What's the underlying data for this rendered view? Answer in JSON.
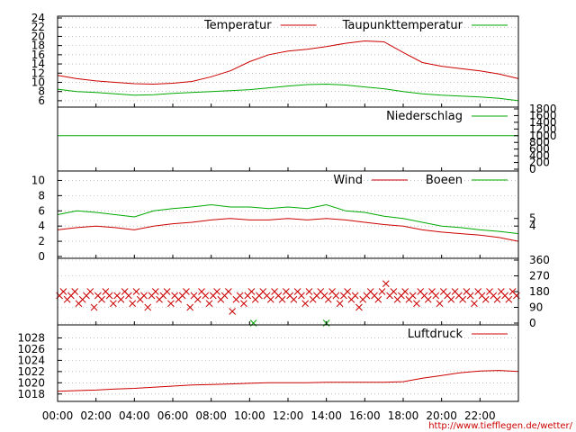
{
  "footer": {
    "url": "http://www.tiefflegen.de/wetter/",
    "color": "#cc0000"
  },
  "colors": {
    "red": "#cc0000",
    "green": "#00aa00",
    "grid": "#999999",
    "frame": "#000000"
  },
  "chart_data": [
    {
      "type": "line",
      "panel": "temperature",
      "ylim": [
        5,
        24
      ],
      "yticks": [
        6,
        8,
        10,
        12,
        14,
        16,
        18,
        20,
        22,
        24
      ],
      "grid": true,
      "legend_placement": "top-right",
      "series": [
        {
          "name": "Temperatur",
          "color": "#cc0000",
          "x": [
            0,
            1,
            2,
            3,
            4,
            5,
            6,
            7,
            8,
            9,
            10,
            11,
            12,
            13,
            14,
            15,
            16,
            17,
            18,
            19,
            20,
            21,
            22,
            23,
            24
          ],
          "values": [
            11.5,
            10.8,
            10.3,
            10.0,
            9.7,
            9.6,
            9.8,
            10.2,
            11.2,
            12.5,
            14.5,
            16.0,
            16.8,
            17.2,
            17.8,
            18.5,
            19.0,
            18.8,
            16.5,
            14.3,
            13.5,
            13.0,
            12.5,
            11.8,
            10.8
          ]
        },
        {
          "name": "Taupunkttemperatur",
          "color": "#00aa00",
          "x": [
            0,
            1,
            2,
            3,
            4,
            5,
            6,
            7,
            8,
            9,
            10,
            11,
            12,
            13,
            14,
            15,
            16,
            17,
            18,
            19,
            20,
            21,
            22,
            23,
            24
          ],
          "values": [
            8.5,
            8.0,
            7.8,
            7.5,
            7.2,
            7.3,
            7.6,
            7.8,
            8.0,
            8.2,
            8.4,
            8.8,
            9.2,
            9.5,
            9.6,
            9.4,
            9.0,
            8.6,
            8.0,
            7.5,
            7.2,
            7.0,
            6.8,
            6.5,
            6.0
          ]
        }
      ]
    },
    {
      "type": "line",
      "panel": "precipitation",
      "ylim": [
        0,
        1800
      ],
      "yticks_right": [
        0,
        200,
        400,
        600,
        800,
        1000,
        1200,
        1400,
        1600,
        1800
      ],
      "grid": false,
      "legend_placement": "top-right",
      "series": [
        {
          "name": "Niederschlag",
          "color": "#00aa00",
          "constant": 1000
        }
      ]
    },
    {
      "type": "line",
      "panel": "wind",
      "ylim": [
        0,
        11
      ],
      "yticks": [
        0,
        2,
        4,
        6,
        8,
        10
      ],
      "yticks_right": [
        4,
        5
      ],
      "grid": true,
      "legend_placement": "top-right",
      "series": [
        {
          "name": "Wind",
          "color": "#cc0000",
          "x": [
            0,
            1,
            2,
            3,
            4,
            5,
            6,
            7,
            8,
            9,
            10,
            11,
            12,
            13,
            14,
            15,
            16,
            17,
            18,
            19,
            20,
            21,
            22,
            23,
            24
          ],
          "values": [
            3.5,
            3.8,
            4.0,
            3.8,
            3.5,
            4.0,
            4.3,
            4.5,
            4.8,
            5.0,
            4.8,
            4.8,
            5.0,
            4.8,
            5.0,
            4.8,
            4.5,
            4.2,
            4.0,
            3.5,
            3.2,
            3.0,
            2.8,
            2.5,
            2.0
          ]
        },
        {
          "name": "Boeen",
          "color": "#00aa00",
          "x": [
            0,
            1,
            2,
            3,
            4,
            5,
            6,
            7,
            8,
            9,
            10,
            11,
            12,
            13,
            14,
            15,
            16,
            17,
            18,
            19,
            20,
            21,
            22,
            23,
            24
          ],
          "values": [
            5.5,
            6.0,
            5.8,
            5.5,
            5.2,
            6.0,
            6.3,
            6.5,
            6.8,
            6.5,
            6.5,
            6.3,
            6.5,
            6.3,
            6.8,
            6.0,
            5.8,
            5.3,
            5.0,
            4.5,
            4.0,
            3.8,
            3.5,
            3.3,
            3.0
          ]
        }
      ]
    },
    {
      "type": "scatter",
      "panel": "wind_direction",
      "ylim": [
        0,
        360
      ],
      "yticks_right": [
        0,
        90,
        180,
        270,
        360
      ],
      "grid": true,
      "marker": "x",
      "series": [
        {
          "color": "#cc0000",
          "x": [
            0.1,
            0.3,
            0.5,
            0.7,
            0.9,
            1.1,
            1.3,
            1.5,
            1.7,
            1.9,
            2.1,
            2.3,
            2.5,
            2.7,
            2.9,
            3.1,
            3.3,
            3.5,
            3.7,
            3.9,
            4.1,
            4.3,
            4.5,
            4.7,
            4.9,
            5.1,
            5.3,
            5.5,
            5.7,
            5.9,
            6.1,
            6.3,
            6.5,
            6.7,
            6.9,
            7.1,
            7.3,
            7.5,
            7.7,
            7.9,
            8.1,
            8.3,
            8.5,
            8.7,
            8.9,
            9.1,
            9.3,
            9.5,
            9.7,
            9.9,
            10.1,
            10.3,
            10.5,
            10.7,
            10.9,
            11.1,
            11.3,
            11.5,
            11.7,
            11.9,
            12.1,
            12.3,
            12.5,
            12.7,
            12.9,
            13.1,
            13.3,
            13.5,
            13.7,
            13.9,
            14.1,
            14.3,
            14.5,
            14.7,
            14.9,
            15.1,
            15.3,
            15.5,
            15.7,
            15.9,
            16.1,
            16.3,
            16.5,
            16.7,
            16.9,
            17.1,
            17.3,
            17.5,
            17.7,
            17.9,
            18.1,
            18.3,
            18.5,
            18.7,
            18.9,
            19.1,
            19.3,
            19.5,
            19.7,
            19.9,
            20.1,
            20.3,
            20.5,
            20.7,
            20.9,
            21.1,
            21.3,
            21.5,
            21.7,
            21.9,
            22.1,
            22.3,
            22.5,
            22.7,
            22.9,
            23.1,
            23.3,
            23.5,
            23.7,
            23.9
          ],
          "values": [
            157,
            180,
            135,
            157,
            180,
            112,
            135,
            157,
            180,
            90,
            157,
            135,
            180,
            157,
            112,
            157,
            135,
            180,
            157,
            112,
            180,
            135,
            157,
            90,
            157,
            180,
            135,
            157,
            180,
            112,
            157,
            135,
            157,
            180,
            90,
            157,
            135,
            180,
            157,
            112,
            157,
            180,
            135,
            157,
            180,
            67,
            135,
            157,
            112,
            157,
            180,
            135,
            157,
            180,
            157,
            135,
            180,
            157,
            135,
            180,
            157,
            135,
            180,
            157,
            112,
            180,
            135,
            157,
            180,
            157,
            135,
            180,
            157,
            112,
            157,
            180,
            135,
            157,
            90,
            135,
            157,
            180,
            157,
            135,
            180,
            225,
            157,
            180,
            135,
            157,
            180,
            135,
            157,
            112,
            180,
            157,
            135,
            180,
            157,
            112,
            180,
            157,
            135,
            180,
            157,
            135,
            180,
            157,
            112,
            180,
            157,
            135,
            180,
            157,
            135,
            180,
            157,
            135,
            180,
            157
          ]
        },
        {
          "color": "#00aa00",
          "x": [
            10.2,
            14.0
          ],
          "values": [
            0,
            0
          ]
        }
      ]
    },
    {
      "type": "line",
      "panel": "pressure",
      "ylim": [
        1017,
        1030
      ],
      "yticks": [
        1018,
        1020,
        1022,
        1024,
        1026,
        1028
      ],
      "grid": true,
      "legend_placement": "top-right",
      "series": [
        {
          "name": "Luftdruck",
          "color": "#cc0000",
          "x": [
            0,
            1,
            2,
            3,
            4,
            5,
            6,
            7,
            8,
            9,
            10,
            11,
            12,
            13,
            14,
            15,
            16,
            17,
            18,
            19,
            20,
            21,
            22,
            23,
            24
          ],
          "values": [
            1018.5,
            1018.6,
            1018.7,
            1018.9,
            1019.0,
            1019.2,
            1019.4,
            1019.6,
            1019.7,
            1019.8,
            1019.9,
            1020.0,
            1020.0,
            1020.0,
            1020.1,
            1020.1,
            1020.1,
            1020.1,
            1020.2,
            1020.8,
            1021.3,
            1021.8,
            1022.1,
            1022.2,
            1022.0
          ]
        }
      ]
    }
  ],
  "x_axis": {
    "xlim": [
      0,
      24
    ],
    "ticks": [
      0,
      2,
      4,
      6,
      8,
      10,
      12,
      14,
      16,
      18,
      20,
      22
    ],
    "tick_labels": [
      "00:00",
      "02:00",
      "04:00",
      "06:00",
      "08:00",
      "10:00",
      "12:00",
      "14:00",
      "16:00",
      "18:00",
      "20:00",
      "22:00"
    ]
  }
}
